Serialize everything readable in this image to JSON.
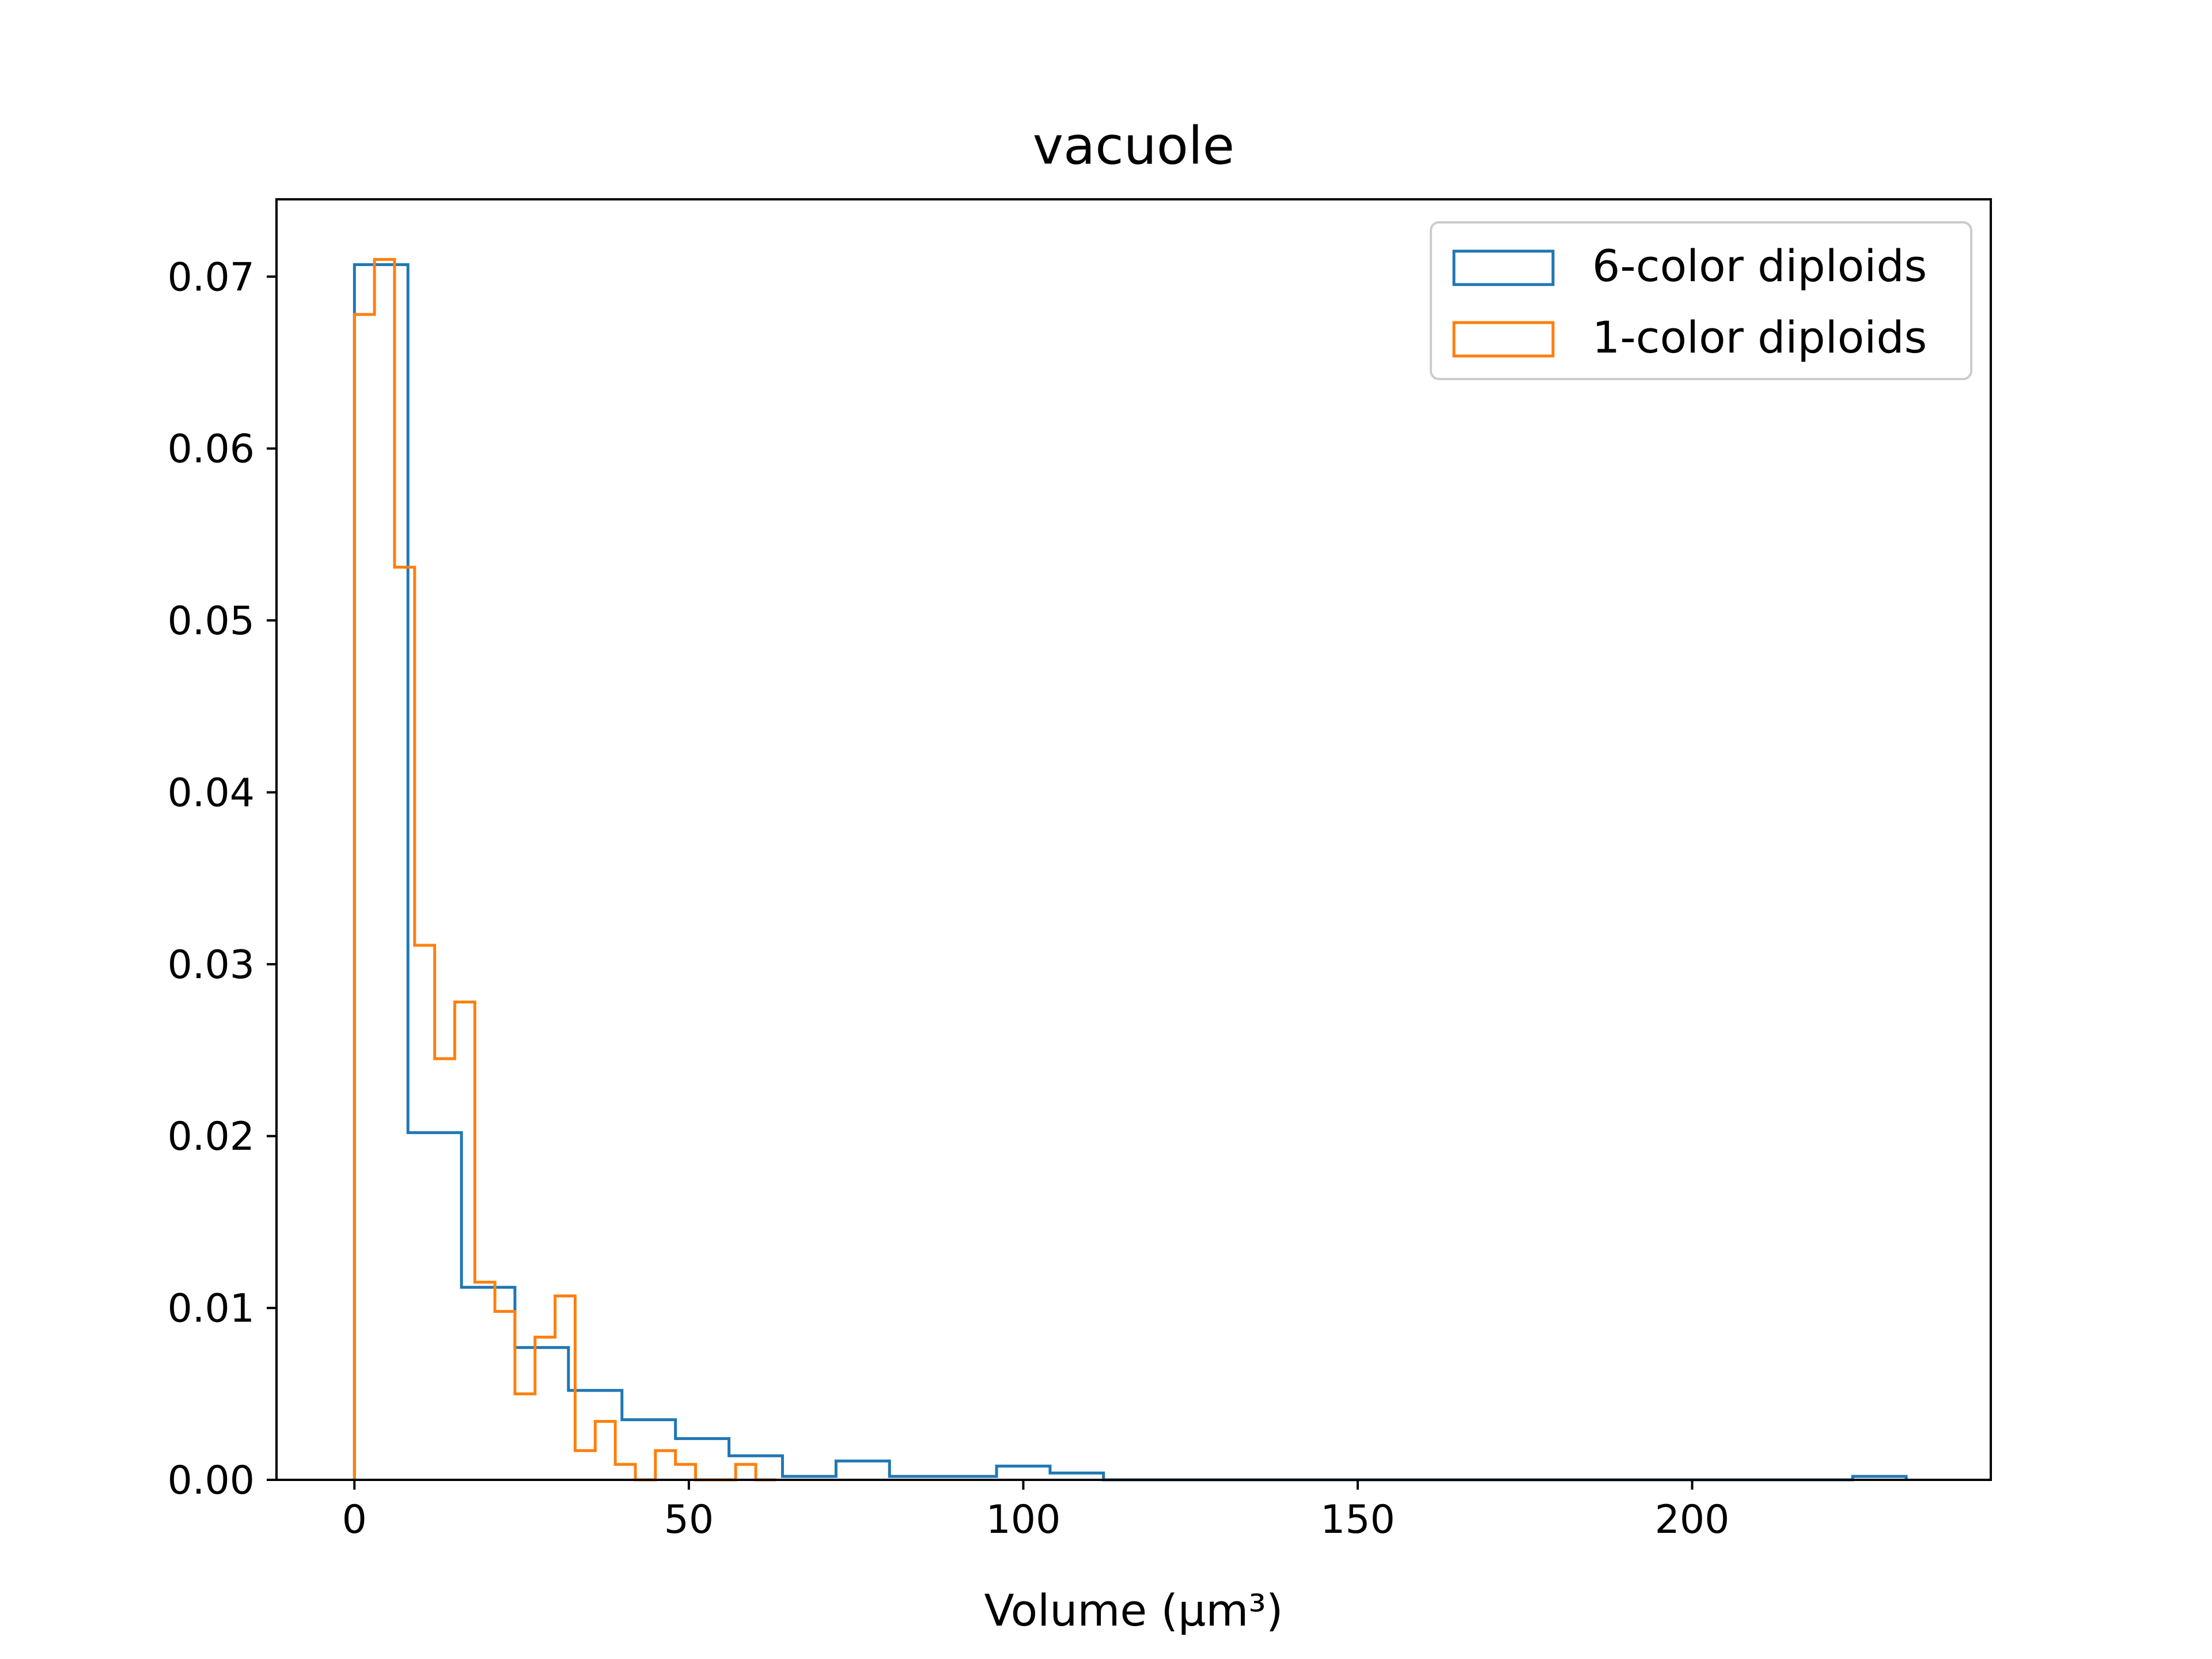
{
  "chart_data": {
    "type": "histogram",
    "title": "vacuole",
    "xlabel": "Volume (μm³)",
    "ylabel": "",
    "xlim": [
      -11.65,
      244.65
    ],
    "ylim": [
      0,
      0.0745
    ],
    "xticks": [
      0,
      50,
      100,
      150,
      200
    ],
    "xtick_labels": [
      "0",
      "50",
      "100",
      "150",
      "200"
    ],
    "yticks": [
      0,
      0.01,
      0.02,
      0.03,
      0.04,
      0.05,
      0.06,
      0.07
    ],
    "ytick_labels": [
      "0.00",
      "0.01",
      "0.02",
      "0.03",
      "0.04",
      "0.05",
      "0.06",
      "0.07"
    ],
    "grid": false,
    "legend_position": "top-right",
    "series": [
      {
        "name": "6-color diploids",
        "color": "#1f77b4",
        "bin_edges": [
          0,
          8,
          16,
          24,
          32,
          40,
          48,
          56,
          64,
          72,
          80,
          88,
          96,
          104,
          112,
          120,
          128,
          136,
          144,
          152,
          160,
          168,
          176,
          184,
          192,
          200,
          208,
          216,
          224,
          232
        ],
        "values": [
          0.0707,
          0.0202,
          0.0112,
          0.0077,
          0.0052,
          0.0035,
          0.0024,
          0.0014,
          0.0002,
          0.0011,
          0.0002,
          0.0002,
          0.0008,
          0.0004,
          0,
          0,
          0,
          0,
          0,
          0,
          0,
          0,
          0,
          0,
          0,
          0,
          0,
          0,
          0.0002
        ]
      },
      {
        "name": "1-color diploids",
        "color": "#ff7f0e",
        "bin_edges": [
          0,
          3,
          6,
          9,
          12,
          15,
          18,
          21,
          24,
          27,
          30,
          33,
          36,
          39,
          42,
          45,
          48,
          51,
          54,
          57,
          60,
          63
        ],
        "values": [
          0.0678,
          0.071,
          0.0531,
          0.0311,
          0.0245,
          0.0278,
          0.0115,
          0.0098,
          0.005,
          0.0083,
          0.0107,
          0.0017,
          0.0034,
          0.0009,
          0,
          0.0017,
          0.0009,
          0,
          0,
          0.0009,
          0
        ]
      }
    ]
  }
}
